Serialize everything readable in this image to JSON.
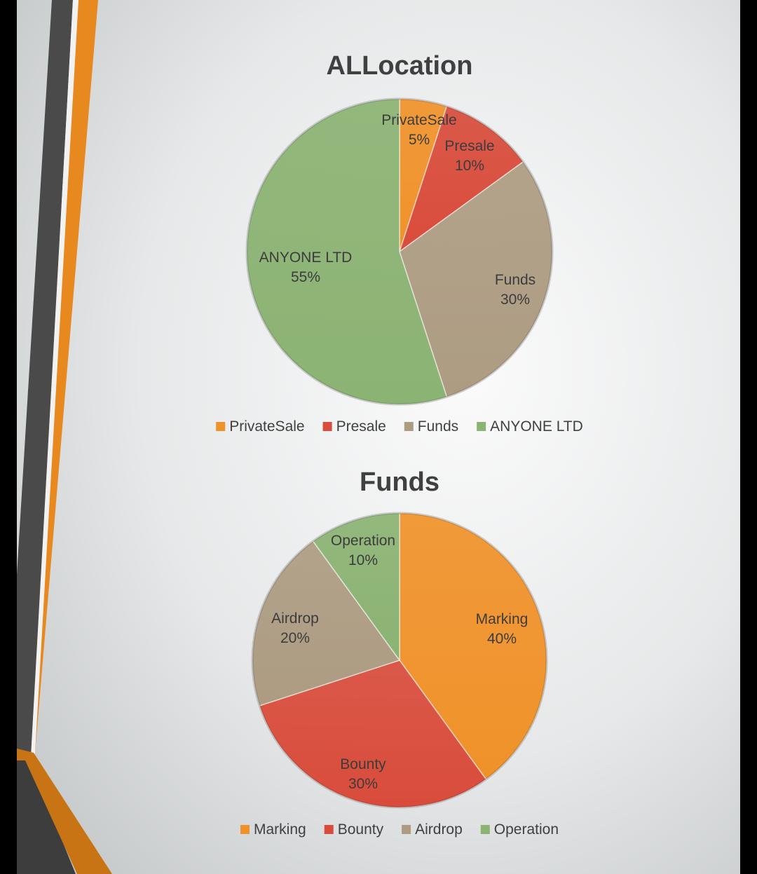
{
  "colors": {
    "orange": "#f0922a",
    "red": "#d94c3b",
    "tan": "#ad9c82",
    "green": "#8bb373",
    "dark_gray": "#4a4a4a",
    "text": "#404040",
    "label": "#3c3c3c"
  },
  "chart_data": [
    {
      "type": "pie",
      "title": "ALLocation",
      "start": "top-clockwise",
      "categories": [
        "PrivateSale",
        "Presale",
        "Funds",
        "ANYONE LTD"
      ],
      "values": [
        5,
        10,
        30,
        55
      ],
      "data_labels": [
        "5%",
        "10%",
        "30%",
        "55%"
      ],
      "colors": [
        "#f0922a",
        "#d94c3b",
        "#ad9c82",
        "#8bb373"
      ],
      "legend": "bottom"
    },
    {
      "type": "pie",
      "title": "Funds",
      "start": "top-clockwise",
      "categories": [
        "Marking",
        "Bounty",
        "Airdrop",
        "Operation"
      ],
      "values": [
        40,
        30,
        20,
        10
      ],
      "data_labels": [
        "40%",
        "30%",
        "20%",
        "10%"
      ],
      "colors": [
        "#f0922a",
        "#d94c3b",
        "#ad9c82",
        "#8bb373"
      ],
      "legend": "bottom"
    }
  ]
}
